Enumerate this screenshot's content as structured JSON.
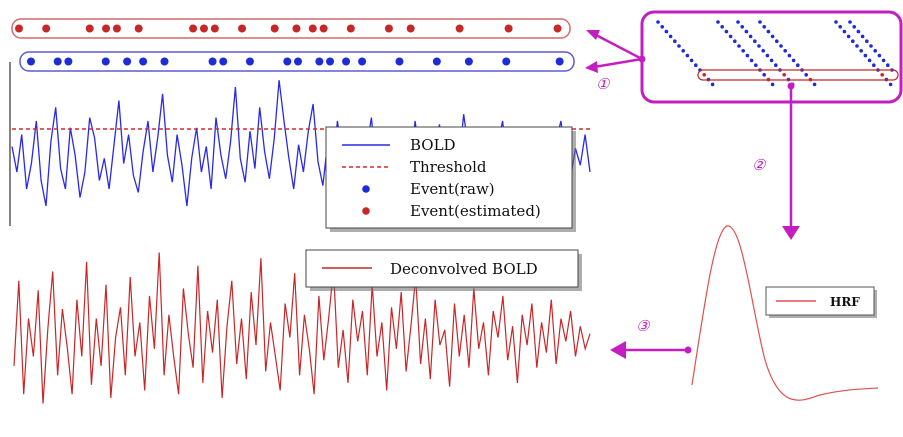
{
  "colors": {
    "bold": "#2a2ae6",
    "estimated": "#c62828",
    "raw_event": "#1f2bd6",
    "threshold": "#d42a2a",
    "arrow": "#c21ec2",
    "frame_red": "#d46a6a",
    "frame_blue": "#5a5ad6"
  },
  "legend_top": {
    "items": [
      {
        "label": "BOLD",
        "symbol": "line"
      },
      {
        "label": "Threshold",
        "symbol": "dashed"
      },
      {
        "label": "Event(raw)",
        "symbol": "dot-blue"
      },
      {
        "label": "Event(estimated)",
        "symbol": "dot-red"
      }
    ]
  },
  "legend_bottom": {
    "label": "Deconvolved BOLD"
  },
  "legend_hrf": {
    "label": "HRF"
  },
  "steps": [
    "①",
    "②",
    "③"
  ],
  "events": {
    "estimated_rows": [
      0.0,
      0.05,
      0.13,
      0.16,
      0.18,
      0.22,
      0.32,
      0.34,
      0.36,
      0.41,
      0.47,
      0.51,
      0.54,
      0.56,
      0.61,
      0.68,
      0.72,
      0.81,
      0.9,
      0.99
    ],
    "raw_rows": [
      0.0,
      0.05,
      0.07,
      0.14,
      0.18,
      0.21,
      0.25,
      0.34,
      0.36,
      0.41,
      0.48,
      0.5,
      0.54,
      0.56,
      0.59,
      0.62,
      0.69,
      0.76,
      0.82,
      0.89,
      0.99
    ]
  },
  "signals": {
    "bold_levels": [
      0.55,
      0.4,
      0.62,
      0.3,
      0.45,
      0.7,
      0.35,
      0.2,
      0.58,
      0.78,
      0.42,
      0.3,
      0.66,
      0.5,
      0.25,
      0.4,
      0.72,
      0.6,
      0.35,
      0.48,
      0.3,
      0.56,
      0.82,
      0.45,
      0.62,
      0.38,
      0.28,
      0.52,
      0.7,
      0.4,
      0.6,
      0.86,
      0.5,
      0.34,
      0.62,
      0.44,
      0.2,
      0.48,
      0.66,
      0.4,
      0.55,
      0.3,
      0.72,
      0.5,
      0.36,
      0.58,
      0.9,
      0.48,
      0.34,
      0.64,
      0.42,
      0.78,
      0.52,
      0.36,
      0.6,
      0.94,
      0.7,
      0.48,
      0.3,
      0.56,
      0.4,
      0.64,
      0.8,
      0.46,
      0.32,
      0.58,
      0.4,
      0.7,
      0.5,
      0.36,
      0.62,
      0.46,
      0.3,
      0.54,
      0.72,
      0.4,
      0.58,
      0.44,
      0.66,
      0.36,
      0.5,
      0.62,
      0.42,
      0.7,
      0.48,
      0.34,
      0.56,
      0.4,
      0.68,
      0.5,
      0.36,
      0.6,
      0.46,
      0.74,
      0.52,
      0.38,
      0.58,
      0.44,
      0.66,
      0.4,
      0.56,
      0.7,
      0.44,
      0.5,
      0.36,
      0.62,
      0.48,
      0.3,
      0.56,
      0.46,
      0.64,
      0.4,
      0.58,
      0.7,
      0.48,
      0.36,
      0.54,
      0.44,
      0.62,
      0.4
    ],
    "deconv_levels": [
      0.35,
      0.8,
      0.2,
      0.6,
      0.4,
      0.75,
      0.15,
      0.55,
      0.85,
      0.3,
      0.65,
      0.45,
      0.2,
      0.7,
      0.4,
      0.9,
      0.25,
      0.6,
      0.35,
      0.78,
      0.18,
      0.5,
      0.66,
      0.3,
      0.82,
      0.4,
      0.58,
      0.22,
      0.72,
      0.44,
      0.95,
      0.3,
      0.62,
      0.4,
      0.2,
      0.76,
      0.52,
      0.34,
      0.88,
      0.26,
      0.64,
      0.42,
      0.7,
      0.18,
      0.56,
      0.8,
      0.36,
      0.6,
      0.28,
      0.74,
      0.46,
      0.92,
      0.32,
      0.58,
      0.4,
      0.22,
      0.68,
      0.5,
      0.84,
      0.3,
      0.62,
      0.44,
      0.2,
      0.72,
      0.38,
      0.6,
      0.86,
      0.34,
      0.54,
      0.26,
      0.7,
      0.48,
      0.64,
      0.3,
      0.78,
      0.4,
      0.58,
      0.22,
      0.66,
      0.44,
      0.74,
      0.32,
      0.56,
      0.82,
      0.36,
      0.6,
      0.28,
      0.7,
      0.46,
      0.54,
      0.24,
      0.68,
      0.4,
      0.62,
      0.34,
      0.76,
      0.44,
      0.58,
      0.3,
      0.64,
      0.5,
      0.72,
      0.38,
      0.56,
      0.26,
      0.62,
      0.46,
      0.68,
      0.34,
      0.58,
      0.42,
      0.7,
      0.36,
      0.6,
      0.48,
      0.64,
      0.4,
      0.56,
      0.44,
      0.52
    ]
  }
}
